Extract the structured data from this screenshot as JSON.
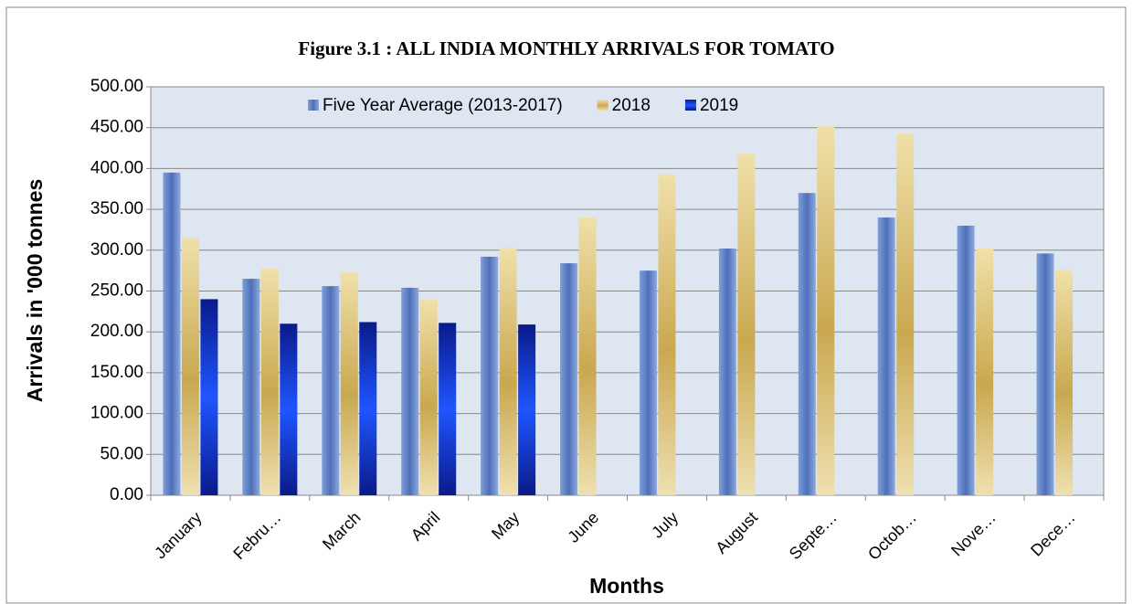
{
  "chart_data": {
    "type": "bar",
    "title": "Figure 3.1 :  ALL INDIA MONTHLY ARRIVALS FOR TOMATO",
    "x_label": "Months",
    "y_label": "Arrivals in '000 tonnes",
    "categories": [
      "January",
      "Febru…",
      "March",
      "April",
      "May",
      "June",
      "July",
      "August",
      "Septe…",
      "Octob…",
      "Nove…",
      "Dece…"
    ],
    "series": [
      {
        "name": "Five Year Average (2013-2017)",
        "color": "#5b7fc4",
        "values": [
          395,
          265,
          256,
          254,
          292,
          284,
          275,
          302,
          370,
          340,
          330,
          296
        ]
      },
      {
        "name": "2018",
        "color": "#d4b96a",
        "values": [
          315,
          278,
          273,
          240,
          303,
          340,
          393,
          418,
          452,
          443,
          302,
          276
        ]
      },
      {
        "name": "2019",
        "color": "#1033d6",
        "values": [
          240,
          210,
          212,
          211,
          209,
          null,
          null,
          null,
          null,
          null,
          null,
          null
        ]
      }
    ],
    "ylim": [
      0,
      500
    ],
    "yticks": [
      {
        "value": 0,
        "label": "0.00"
      },
      {
        "value": 50,
        "label": "50.00"
      },
      {
        "value": 100,
        "label": "100.00"
      },
      {
        "value": 150,
        "label": "150.00"
      },
      {
        "value": 200,
        "label": "200.00"
      },
      {
        "value": 250,
        "label": "250.00"
      },
      {
        "value": 300,
        "label": "300.00"
      },
      {
        "value": 350,
        "label": "350.00"
      },
      {
        "value": 400,
        "label": "400.00"
      },
      {
        "value": 450,
        "label": "450.00"
      },
      {
        "value": 500,
        "label": "500.00"
      }
    ],
    "grid": true
  }
}
